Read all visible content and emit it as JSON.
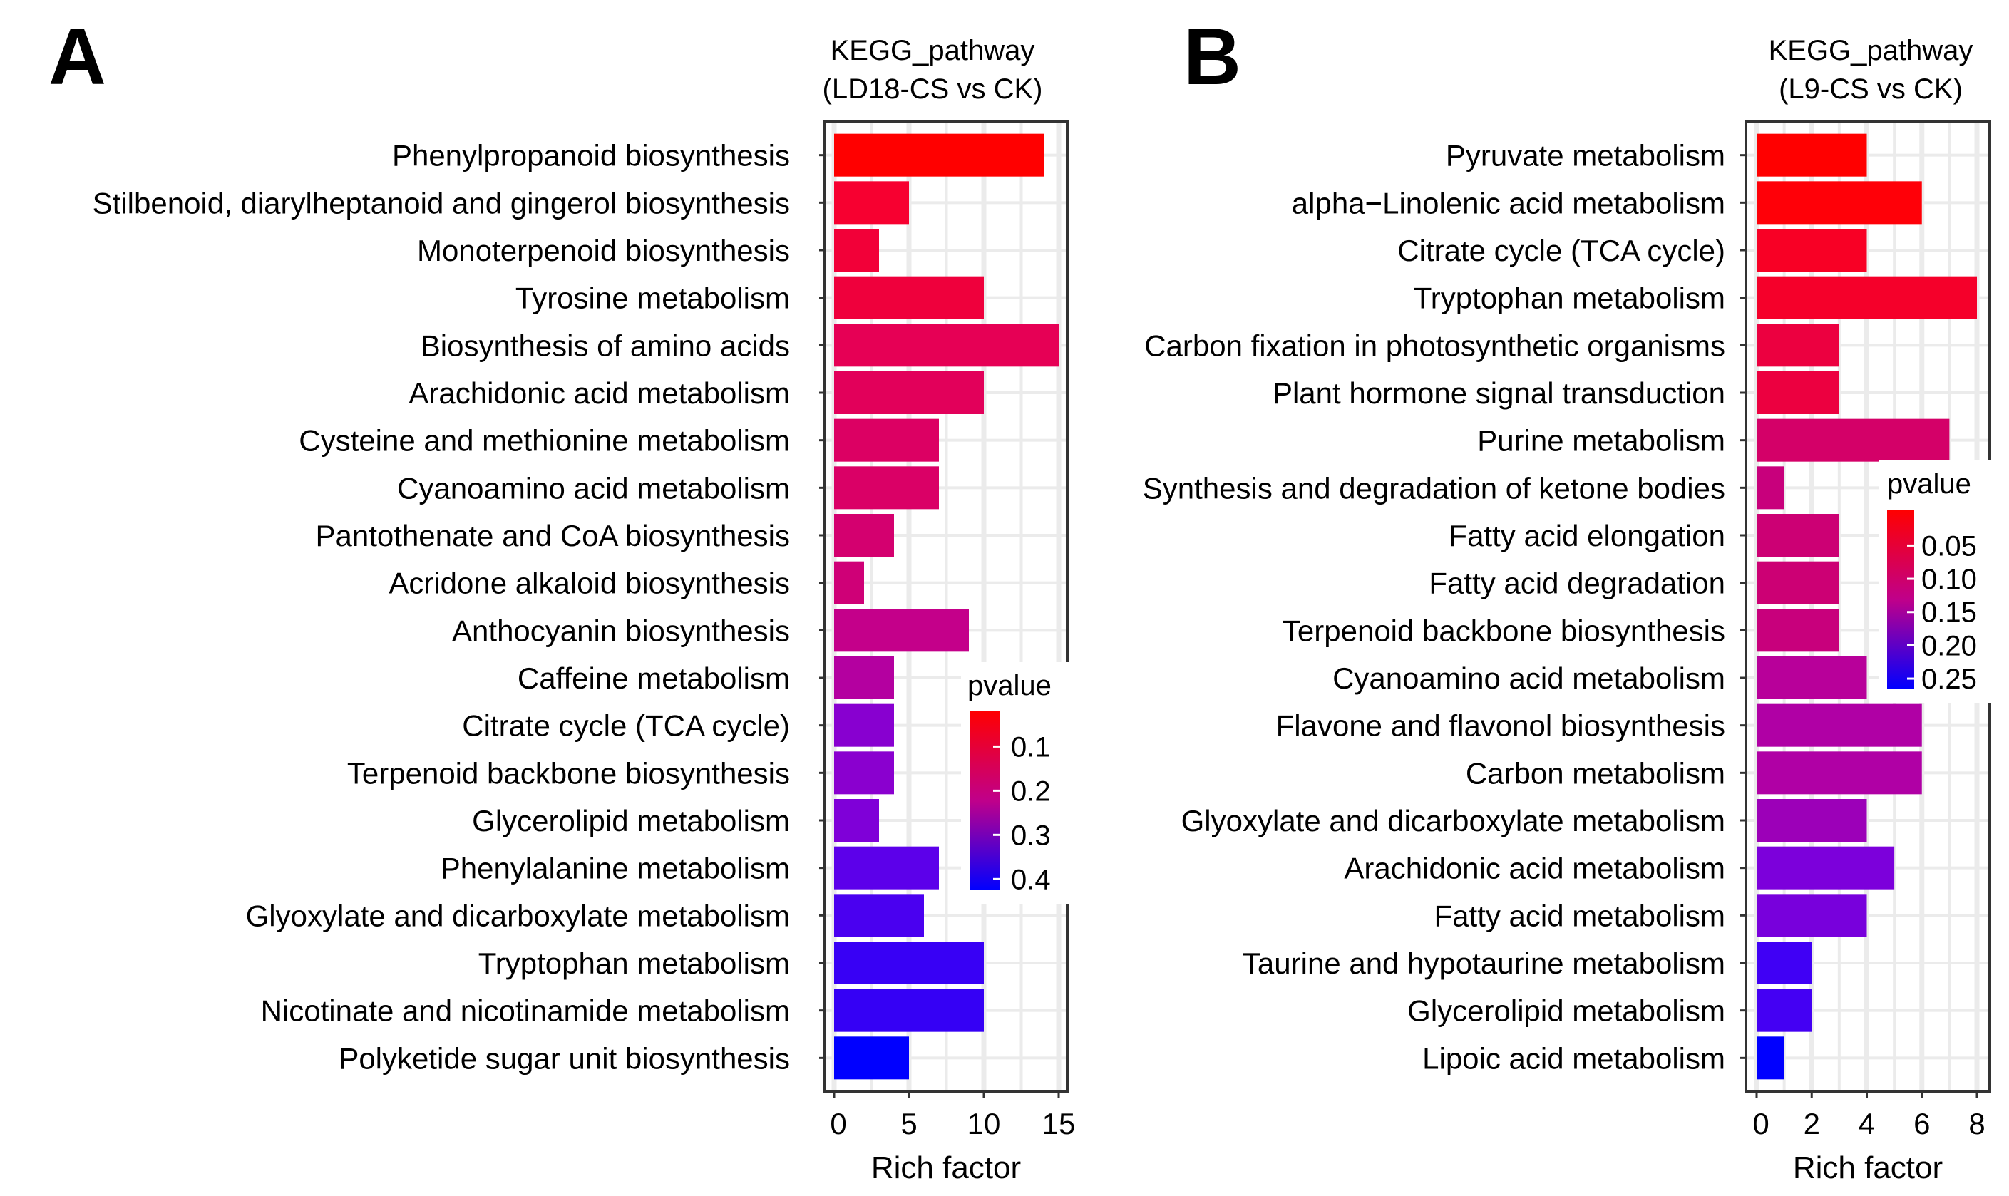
{
  "chart_data": [
    {
      "panel_label": "A",
      "type": "bar",
      "orientation": "horizontal",
      "title": [
        "KEGG_pathway",
        "(LD18-CS vs CK)"
      ],
      "xlabel": "Rich factor",
      "ylabel": "",
      "xlim": [
        0,
        15.5
      ],
      "xticks": [
        0,
        5,
        10,
        15
      ],
      "grid": true,
      "categories": [
        "Phenylpropanoid biosynthesis",
        "Stilbenoid, diarylheptanoid and gingerol biosynthesis",
        "Monoterpenoid biosynthesis",
        "Tyrosine metabolism",
        "Biosynthesis of amino acids",
        "Arachidonic acid metabolism",
        "Cysteine and methionine metabolism",
        "Cyanoamino acid metabolism",
        "Pantothenate and CoA biosynthesis",
        "Acridone alkaloid biosynthesis",
        "Anthocyanin biosynthesis",
        "Caffeine metabolism",
        "Citrate cycle (TCA cycle)",
        "Terpenoid backbone biosynthesis",
        "Glycerolipid metabolism",
        "Phenylalanine metabolism",
        "Glyoxylate and dicarboxylate metabolism",
        "Tryptophan metabolism",
        "Nicotinate and nicotinamide metabolism",
        "Polyketide sugar unit biosynthesis"
      ],
      "values": [
        14,
        5,
        3,
        10,
        15,
        10,
        7,
        7,
        4,
        2,
        9,
        4,
        4,
        4,
        3,
        7,
        6,
        10,
        10,
        5
      ],
      "colors": [
        "#ff0000",
        "#f70030",
        "#f20038",
        "#ef003c",
        "#e60055",
        "#e2005a",
        "#dc0063",
        "#da0066",
        "#d4006f",
        "#cf0077",
        "#c4008a",
        "#b400a0",
        "#8800d0",
        "#8a00cf",
        "#7f00d8",
        "#5c00ea",
        "#4a00f0",
        "#3800f5",
        "#3500f5",
        "#0000ff"
      ],
      "legend": {
        "title": "pvalue",
        "ticks": [
          "0.1",
          "0.2",
          "0.3",
          "0.4"
        ],
        "low_color": "#ff0000",
        "high_color": "#0000ff",
        "placement": "bottom-right inside"
      }
    },
    {
      "panel_label": "B",
      "type": "bar",
      "orientation": "horizontal",
      "title": [
        "KEGG_pathway",
        "(L9-CS vs CK)"
      ],
      "xlabel": "Rich factor",
      "ylabel": "",
      "xlim": [
        0,
        8.3
      ],
      "xticks": [
        0,
        2,
        4,
        6,
        8
      ],
      "grid": true,
      "categories": [
        "Pyruvate metabolism",
        "alpha−Linolenic acid metabolism",
        "Citrate cycle (TCA cycle)",
        "Tryptophan metabolism",
        "Carbon fixation in photosynthetic organisms",
        "Plant hormone signal transduction",
        "Purine metabolism",
        "Synthesis and degradation of ketone bodies",
        "Fatty acid elongation",
        "Fatty acid degradation",
        "Terpenoid backbone biosynthesis",
        "Cyanoamino acid metabolism",
        "Flavone and flavonol biosynthesis",
        "Carbon metabolism",
        "Glyoxylate and dicarboxylate metabolism",
        "Arachidonic acid metabolism",
        "Fatty acid metabolism",
        "Taurine and hypotaurine metabolism",
        "Glycerolipid metabolism",
        "Lipoic acid metabolism"
      ],
      "values": [
        4,
        6,
        4,
        8,
        3,
        3,
        7,
        1,
        3,
        3,
        3,
        4,
        6,
        6,
        4,
        5,
        4,
        2,
        2,
        1
      ],
      "colors": [
        "#ff0000",
        "#ff0008",
        "#f80025",
        "#f5002a",
        "#ec0040",
        "#ec0040",
        "#d40068",
        "#c8007c",
        "#cc0074",
        "#cc0074",
        "#c8007c",
        "#b8009a",
        "#b000a5",
        "#b000a5",
        "#9c00b8",
        "#7c00db",
        "#7800dc",
        "#4000f5",
        "#4400f3",
        "#0000ff"
      ],
      "legend": {
        "title": "pvalue",
        "ticks": [
          "0.05",
          "0.10",
          "0.15",
          "0.20",
          "0.25"
        ],
        "low_color": "#ff0000",
        "high_color": "#0000ff",
        "placement": "middle-right inside"
      }
    }
  ]
}
